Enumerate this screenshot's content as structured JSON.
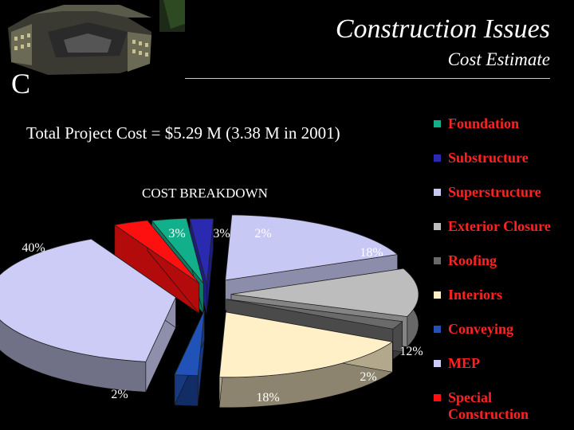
{
  "header": {
    "letter": "C",
    "title": "Construction Issues",
    "subtitle": "Cost Estimate"
  },
  "summary": {
    "total_cost": "Total Project Cost = $5.29 M (3.38 M in 2001)"
  },
  "chart_data": {
    "type": "pie",
    "subtitle": "COST BREAKDOWN",
    "categories": [
      "Foundation",
      "Substructure",
      "Superstructure",
      "Exterior Closure",
      "Roofing",
      "Interiors",
      "Conveying",
      "MEP",
      "Special Construction"
    ],
    "values": [
      3,
      2,
      18,
      12,
      2,
      18,
      2,
      40,
      3
    ],
    "labels": [
      "3%",
      "2%",
      "18%",
      "12%",
      "2%",
      "18%",
      "2%",
      "40%",
      "3%"
    ],
    "colors": [
      "#11b08a",
      "#2a2ab0",
      "#c8c8f4",
      "#bdbdbd",
      "#6a6a6a",
      "#fff0c8",
      "#2052b8",
      "#ccccf6",
      "#ff1010"
    ],
    "legend_position": "right",
    "style": "exploded-3d"
  }
}
